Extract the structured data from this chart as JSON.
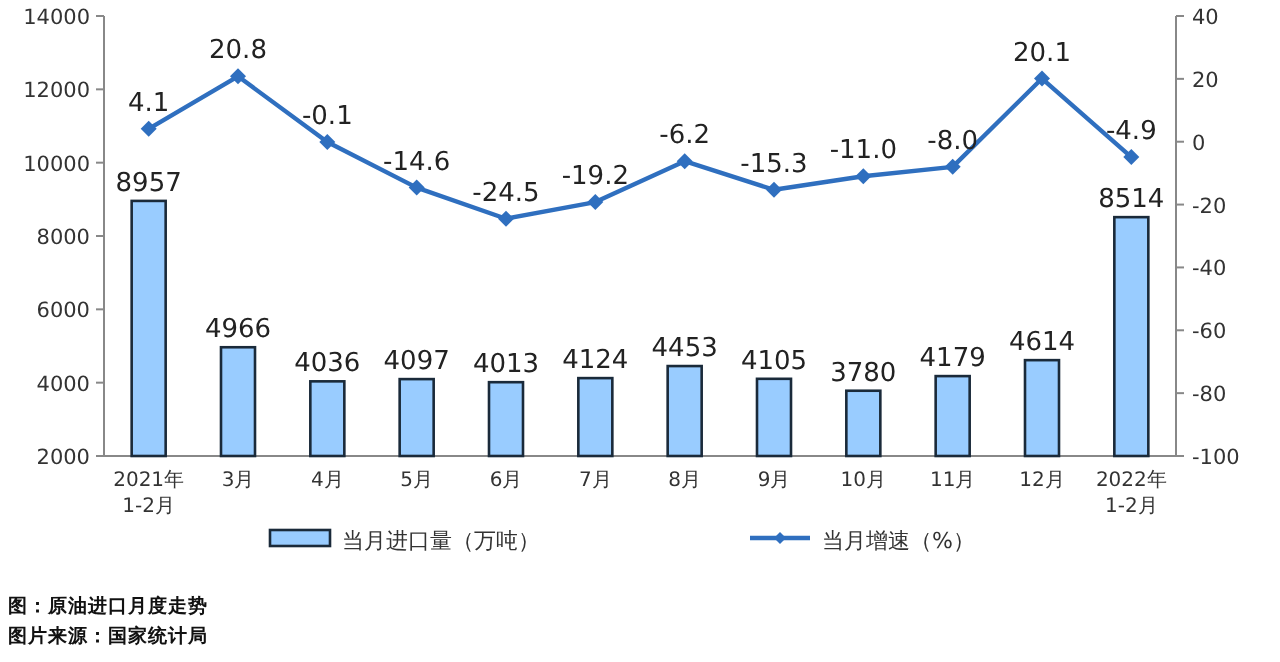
{
  "chart_data": {
    "type": "bar",
    "categories": [
      "2021年\n1-2月",
      "3月",
      "4月",
      "5月",
      "6月",
      "7月",
      "8月",
      "9月",
      "10月",
      "11月",
      "12月",
      "2022年\n1-2月"
    ],
    "series": [
      {
        "name": "当月进口量（万吨）",
        "color": "#99ccff",
        "values": [
          8957,
          4966,
          4036,
          4097,
          4013,
          4124,
          4453,
          4105,
          3780,
          4179,
          4614,
          8514
        ]
      },
      {
        "name": "当月增速（%）",
        "type": "line",
        "axis": "y2",
        "color": "#2f6fbf",
        "values": [
          4.1,
          20.8,
          -0.1,
          -14.6,
          -24.5,
          -19.2,
          -6.2,
          -15.3,
          -11.0,
          -8.0,
          20.1,
          -4.9
        ],
        "value_labels": [
          "4.1",
          "20.8",
          "-0.1",
          "-14.6",
          "-24.5",
          "-19.2",
          "-6.2",
          "-15.3",
          "-11.0",
          "-8.0",
          "20.1",
          "-4.9"
        ]
      }
    ],
    "ylim": [
      2000,
      14000
    ],
    "yticks": [
      2000,
      4000,
      6000,
      8000,
      10000,
      12000,
      14000
    ],
    "y2lim": [
      -100,
      40
    ],
    "y2ticks": [
      -100,
      -80,
      -60,
      -40,
      -20,
      0,
      20,
      40
    ],
    "data_labels": true,
    "marker": "diamond",
    "grid": false,
    "legend": "bottom",
    "annotations": [
      "图：原油进口月度走势",
      "图片来源：国家统计局"
    ]
  }
}
